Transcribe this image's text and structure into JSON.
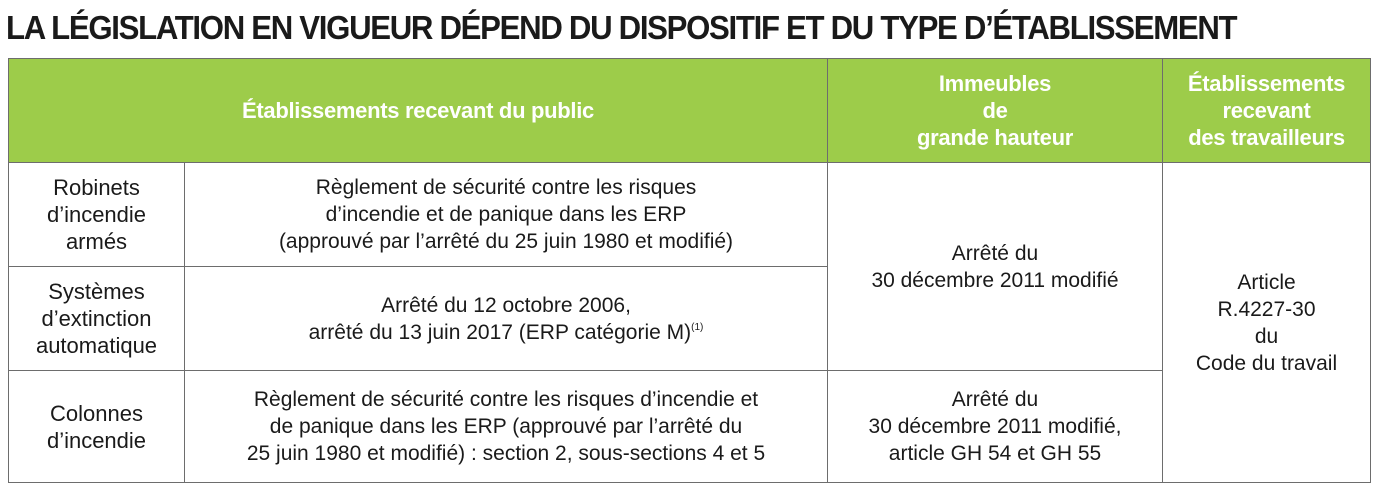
{
  "title": "LA LÉGISLATION EN VIGUEUR DÉPEND DU DISPOSITIF ET DU TYPE D’ÉTABLISSEMENT",
  "headers": {
    "erp": "Établissements recevant du public",
    "igh": [
      "Immeubles",
      "de",
      "grande hauteur"
    ],
    "ert": [
      "Établissements",
      "recevant",
      "des travailleurs"
    ]
  },
  "rows": {
    "ria": {
      "label": [
        "Robinets",
        "d’incendie",
        "armés"
      ],
      "erp": [
        "Règlement de sécurité contre les risques",
        "d’incendie et de panique dans les ERP",
        "(approuvé par l’arrêté du 25 juin 1980 et modifié)"
      ]
    },
    "sea": {
      "label": [
        "Systèmes",
        "d’extinction",
        "automatique"
      ],
      "erp_line1": "Arrêté du 12 octobre 2006,",
      "erp_line2": "arrêté du 13 juin 2017 (ERP catégorie M)",
      "erp_note": "(1)"
    },
    "ci": {
      "label": [
        "Colonnes",
        "d’incendie"
      ],
      "erp": [
        "Règlement de sécurité contre les risques d’incendie et",
        "de panique dans les ERP (approuvé par l’arrêté du",
        "25 juin 1980 et modifié) : section 2, sous-sections 4 et 5"
      ],
      "igh": [
        "Arrêté du",
        "30 décembre 2011 modifié,",
        "article GH 54 et GH 55"
      ]
    }
  },
  "igh_shared": [
    "Arrêté du",
    "30 décembre 2011 modifié"
  ],
  "ert_shared": [
    "Article",
    "R.4227-30",
    "du",
    "Code du travail"
  ],
  "colors": {
    "header_bg": "#9dcc4a",
    "header_text": "#ffffff",
    "border": "#6d6d6d",
    "text": "#1a1a1a"
  }
}
